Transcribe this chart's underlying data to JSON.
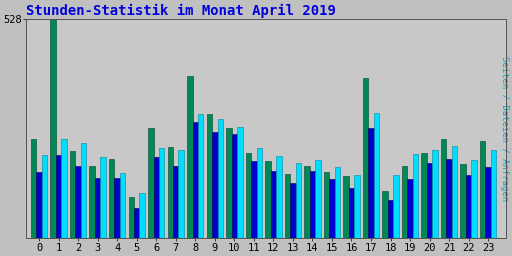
{
  "title": "Stunden-Statistik im Monat April 2019",
  "title_color": "#0000dd",
  "ylabel_right": "Seiten / Dateien / Anfragen",
  "ymax": 528,
  "ytick_label": "528",
  "background_color": "#c0c0c0",
  "plot_bg_color": "#c8c8c8",
  "bar_colors": [
    "#008855",
    "#0000cc",
    "#00ddff"
  ],
  "hours": [
    0,
    1,
    2,
    3,
    4,
    5,
    6,
    7,
    8,
    9,
    10,
    11,
    12,
    13,
    14,
    15,
    16,
    17,
    18,
    19,
    20,
    21,
    22,
    23
  ],
  "seiten": [
    240,
    528,
    210,
    175,
    190,
    100,
    265,
    220,
    390,
    300,
    265,
    205,
    185,
    155,
    175,
    160,
    150,
    385,
    115,
    175,
    205,
    240,
    180,
    235
  ],
  "dateien": [
    160,
    200,
    175,
    145,
    145,
    72,
    195,
    175,
    280,
    255,
    250,
    185,
    162,
    132,
    162,
    142,
    122,
    265,
    92,
    142,
    182,
    192,
    152,
    172
  ],
  "anfragen": [
    200,
    240,
    230,
    195,
    158,
    108,
    218,
    212,
    298,
    288,
    268,
    218,
    198,
    182,
    188,
    172,
    152,
    302,
    153,
    202,
    213,
    222,
    188,
    212
  ],
  "font_family": "monospace",
  "title_fontsize": 10,
  "tick_fontsize": 7.5,
  "bar_width": 0.28,
  "grid_color": "#999999",
  "spine_color": "#555555",
  "right_label_color": "#00aacc"
}
